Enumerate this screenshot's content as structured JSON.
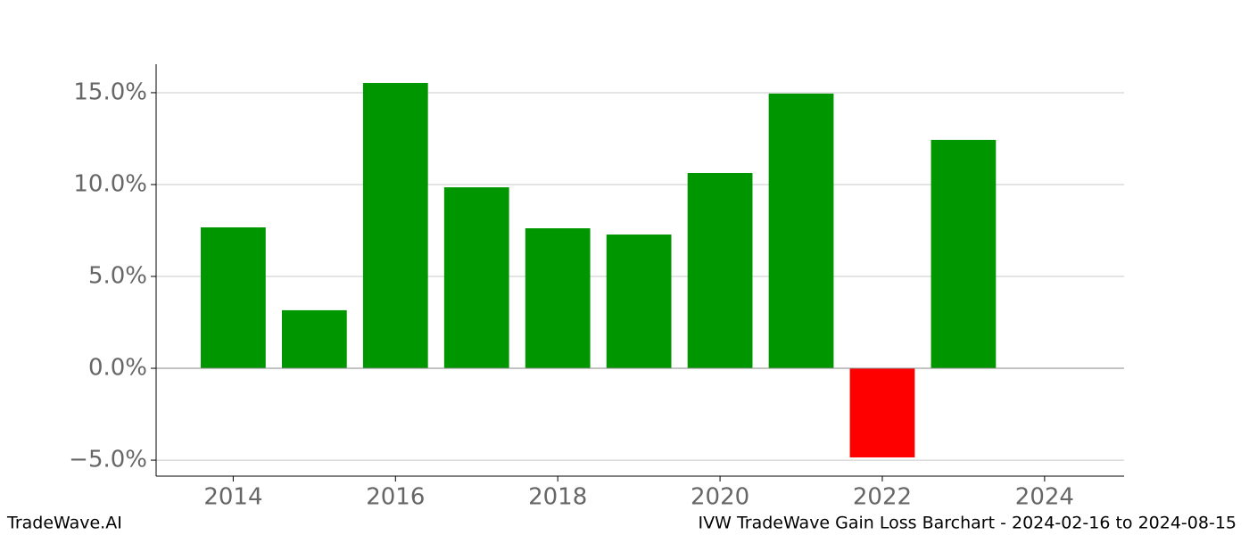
{
  "chart_data": {
    "type": "bar",
    "title": "IVW TradeWave Gain Loss Barchart - 2024-02-16 to 2024-08-15",
    "watermark": "TradeWave.AI",
    "x": [
      2014,
      2015,
      2016,
      2017,
      2018,
      2019,
      2020,
      2021,
      2022,
      2023
    ],
    "values": [
      7.67,
      3.16,
      15.53,
      9.85,
      7.62,
      7.28,
      10.63,
      14.95,
      -4.85,
      12.43
    ],
    "colors": [
      "#009600",
      "#009600",
      "#009600",
      "#009600",
      "#009600",
      "#009600",
      "#009600",
      "#009600",
      "#ff0000",
      "#009600"
    ],
    "xlim": [
      2013.05,
      2024.98
    ],
    "xticks": [
      2014,
      2016,
      2018,
      2020,
      2022,
      2024
    ],
    "ylim": [
      -5.87,
      16.55
    ],
    "yticks": [
      {
        "value": -5,
        "label": "−5.0%"
      },
      {
        "value": 0,
        "label": "0.0%"
      },
      {
        "value": 5,
        "label": "5.0%"
      },
      {
        "value": 10,
        "label": "10.0%"
      },
      {
        "value": 15,
        "label": "15.0%"
      }
    ],
    "grid": true
  }
}
